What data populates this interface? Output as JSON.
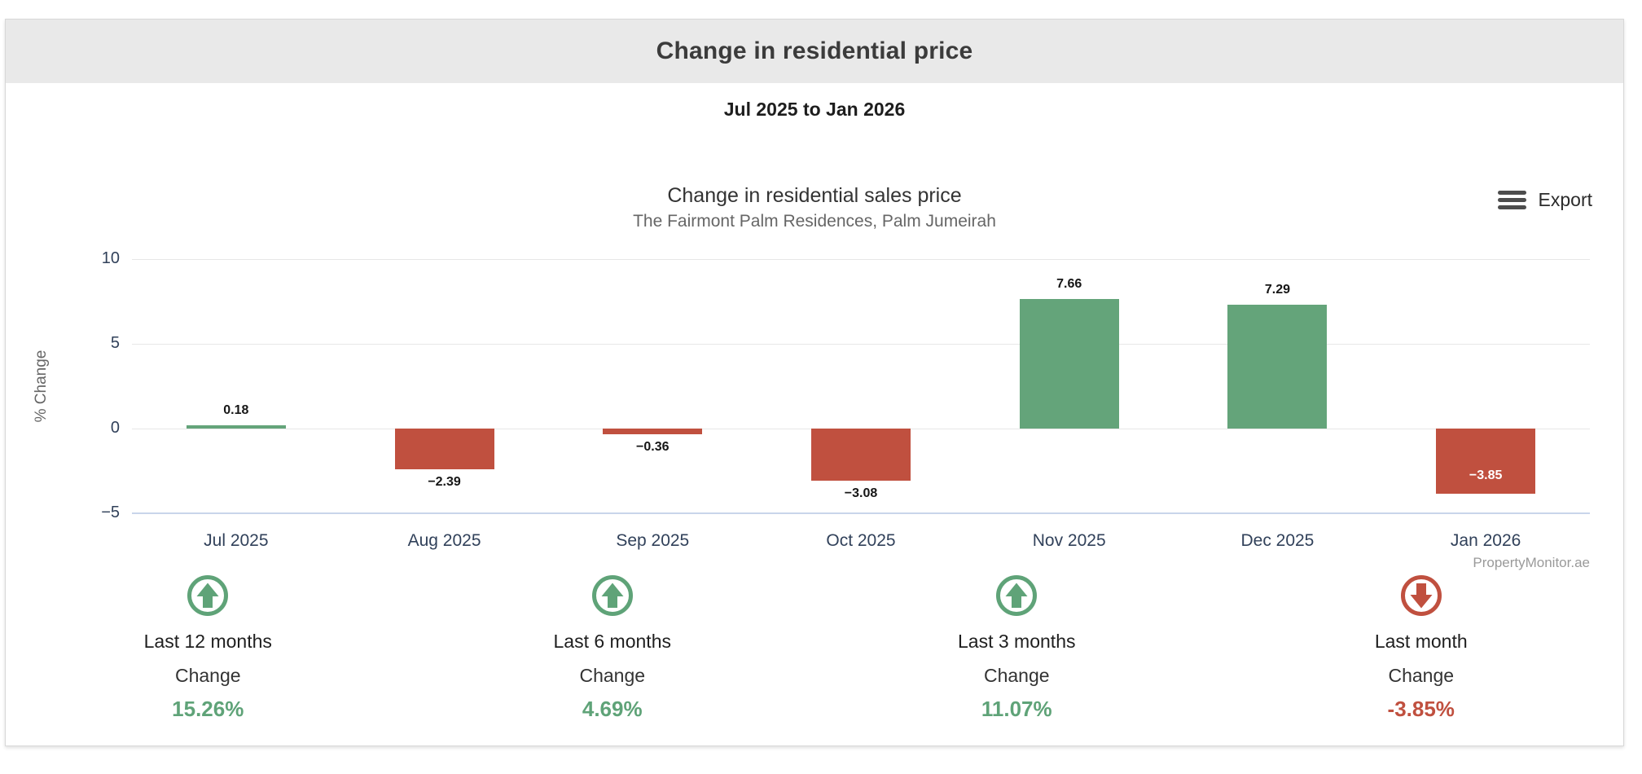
{
  "report": {
    "title": "Change in residential price",
    "period": "Jul 2025 to Jan 2026"
  },
  "chart": {
    "export_label": "Export"
  },
  "chart_data": {
    "type": "bar",
    "title": "Change in residential sales price",
    "subtitle": "The Fairmont Palm Residences, Palm Jumeirah",
    "ylabel": "% Change",
    "ylim": [
      -5,
      10
    ],
    "grid": true,
    "credit": "PropertyMonitor.ae",
    "yticks": [
      {
        "value": 10,
        "label": "10"
      },
      {
        "value": 5,
        "label": "5"
      },
      {
        "value": 0,
        "label": "0"
      },
      {
        "value": -5,
        "label": "−5"
      }
    ],
    "categories": [
      "Jul 2025",
      "Aug 2025",
      "Sep 2025",
      "Oct 2025",
      "Nov 2025",
      "Dec 2025",
      "Jan 2026"
    ],
    "points": [
      {
        "category": "Jul 2025",
        "value": 0.18,
        "label": "0.18",
        "color": "positive",
        "label_position": "above"
      },
      {
        "category": "Aug 2025",
        "value": -2.39,
        "label": "−2.39",
        "color": "negative",
        "label_position": "below"
      },
      {
        "category": "Sep 2025",
        "value": -0.36,
        "label": "−0.36",
        "color": "negative",
        "label_position": "below"
      },
      {
        "category": "Oct 2025",
        "value": -3.08,
        "label": "−3.08",
        "color": "negative",
        "label_position": "below"
      },
      {
        "category": "Nov 2025",
        "value": 7.66,
        "label": "7.66",
        "color": "positive",
        "label_position": "above"
      },
      {
        "category": "Dec 2025",
        "value": 7.29,
        "label": "7.29",
        "color": "positive",
        "label_position": "above"
      },
      {
        "category": "Jan 2026",
        "value": -3.85,
        "label": "−3.85",
        "color": "negative",
        "label_position": "inside"
      }
    ],
    "colors": {
      "positive": "#64a47a",
      "negative": "#c0503f"
    }
  },
  "stats": {
    "change_label": "Change",
    "items": [
      {
        "label": "Last 12 months",
        "value": "15.26%",
        "direction": "up"
      },
      {
        "label": "Last 6 months",
        "value": "4.69%",
        "direction": "up"
      },
      {
        "label": "Last 3 months",
        "value": "11.07%",
        "direction": "up"
      },
      {
        "label": "Last month",
        "value": "-3.85%",
        "direction": "down"
      }
    ]
  }
}
